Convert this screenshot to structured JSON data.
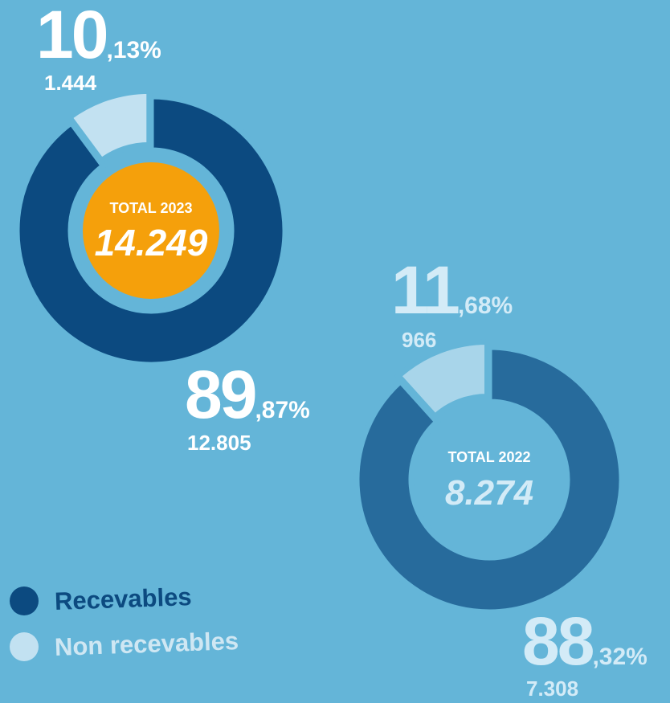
{
  "chart_data": [
    {
      "type": "pie",
      "title": "TOTAL 2023",
      "total": 14249,
      "total_label": "14.249",
      "categories": [
        "Recevables",
        "Non recevables"
      ],
      "values": [
        89.87,
        10.13
      ],
      "value_labels": [
        "89,87%",
        "10,13%"
      ],
      "counts": [
        12805,
        1444
      ],
      "count_labels": [
        "12.805",
        "1.444"
      ],
      "colors": [
        "#0c4a80",
        "#c2e1f1"
      ],
      "center_color": "#f5a00b",
      "label_color": "#ffffff"
    },
    {
      "type": "pie",
      "title": "TOTAL 2022",
      "total": 8274,
      "total_label": "8.274",
      "values": [
        88.32,
        11.68
      ],
      "value_labels": [
        "88,32%",
        "11,68%"
      ],
      "counts": [
        7308,
        966
      ],
      "count_labels": [
        "7.308",
        "966"
      ],
      "colors": [
        "#276b9c",
        "#a8d5ea"
      ],
      "center_color": "#64b5d8",
      "label_color": "#d3ebf7"
    }
  ]
}
